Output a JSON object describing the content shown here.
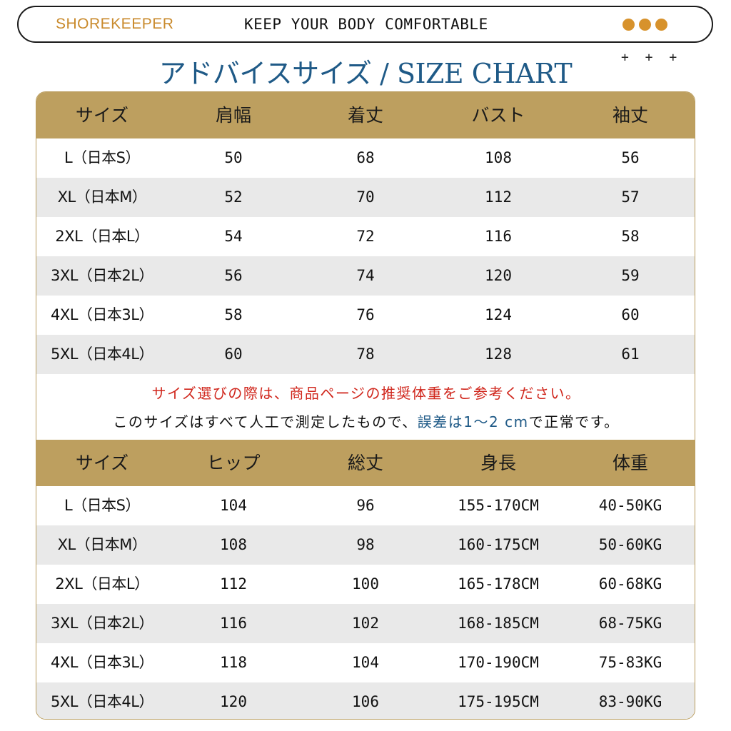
{
  "header": {
    "brand": "SHOREKEEPER",
    "tagline": "KEEP YOUR BODY COMFORTABLE",
    "dot_color": "#d7922c"
  },
  "title": "アドバイスサイズ / SIZE CHART",
  "decoration": "+ + +",
  "table1": {
    "columns": [
      "サイズ",
      "肩幅",
      "着丈",
      "バスト",
      "袖丈"
    ],
    "rows": [
      [
        "L（日本S）",
        "50",
        "68",
        "108",
        "56"
      ],
      [
        "XL（日本M）",
        "52",
        "70",
        "112",
        "57"
      ],
      [
        "2XL（日本L）",
        "54",
        "72",
        "116",
        "58"
      ],
      [
        "3XL（日本2L）",
        "56",
        "74",
        "120",
        "59"
      ],
      [
        "4XL（日本3L）",
        "58",
        "76",
        "124",
        "60"
      ],
      [
        "5XL（日本4L）",
        "60",
        "78",
        "128",
        "61"
      ]
    ]
  },
  "notes": {
    "line1": "サイズ選びの際は、商品ページの推奨体重をご参考ください。",
    "line2_pre": "このサイズはすべて人工で測定したもので、",
    "line2_blue": "誤差は1〜2 cm",
    "line2_post": "で正常です。"
  },
  "table2": {
    "columns": [
      "サイズ",
      "ヒップ",
      "総丈",
      "身長",
      "体重"
    ],
    "rows": [
      [
        "L（日本S）",
        "104",
        "96",
        "155-170CM",
        "40-50KG"
      ],
      [
        "XL（日本M）",
        "108",
        "98",
        "160-175CM",
        "50-60KG"
      ],
      [
        "2XL（日本L）",
        "112",
        "100",
        "165-178CM",
        "60-68KG"
      ],
      [
        "3XL（日本2L）",
        "116",
        "102",
        "168-185CM",
        "68-75KG"
      ],
      [
        "4XL（日本3L）",
        "118",
        "104",
        "170-190CM",
        "75-83KG"
      ],
      [
        "5XL（日本4L）",
        "120",
        "106",
        "175-195CM",
        "83-90KG"
      ]
    ]
  },
  "colors": {
    "header_band": "#bd9f5f",
    "title_blue": "#1f5a87",
    "note_red": "#d0261c",
    "brand_orange": "#c98a2c",
    "row_shade": "#e9e9e9"
  }
}
